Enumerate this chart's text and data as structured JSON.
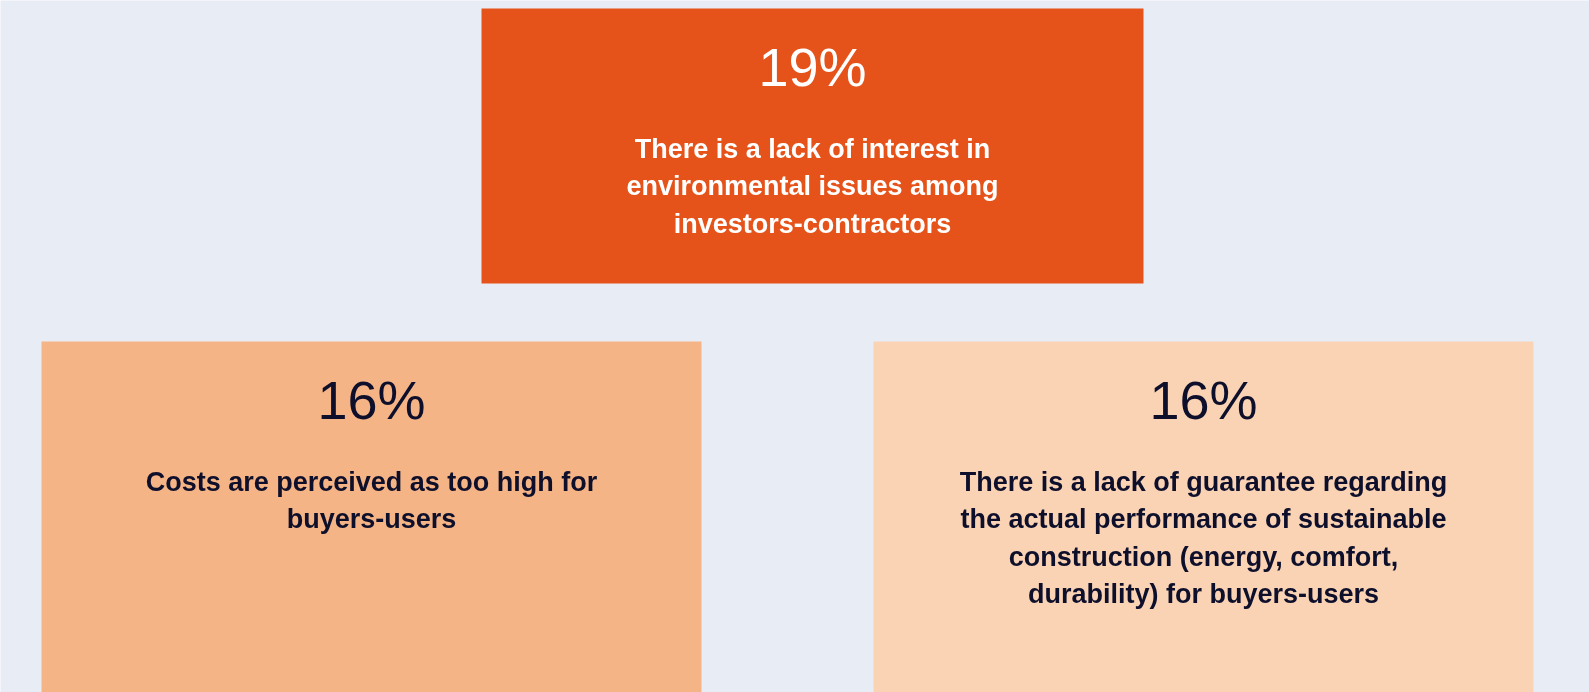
{
  "chart_data": {
    "type": "other",
    "categories": [
      "There is a lack of interest in environmental issues among investors-contractors",
      "Costs are perceived as too high for buyers-users",
      "There is a lack of guarantee regarding the actual performance of sustainable construction (energy, comfort, durability) for buyers-users"
    ],
    "values": [
      19,
      16,
      16
    ],
    "value_labels": [
      "19%",
      "16%",
      "16%"
    ],
    "colors": [
      "#e5531b",
      "#f5b485",
      "#fad3b5"
    ]
  }
}
